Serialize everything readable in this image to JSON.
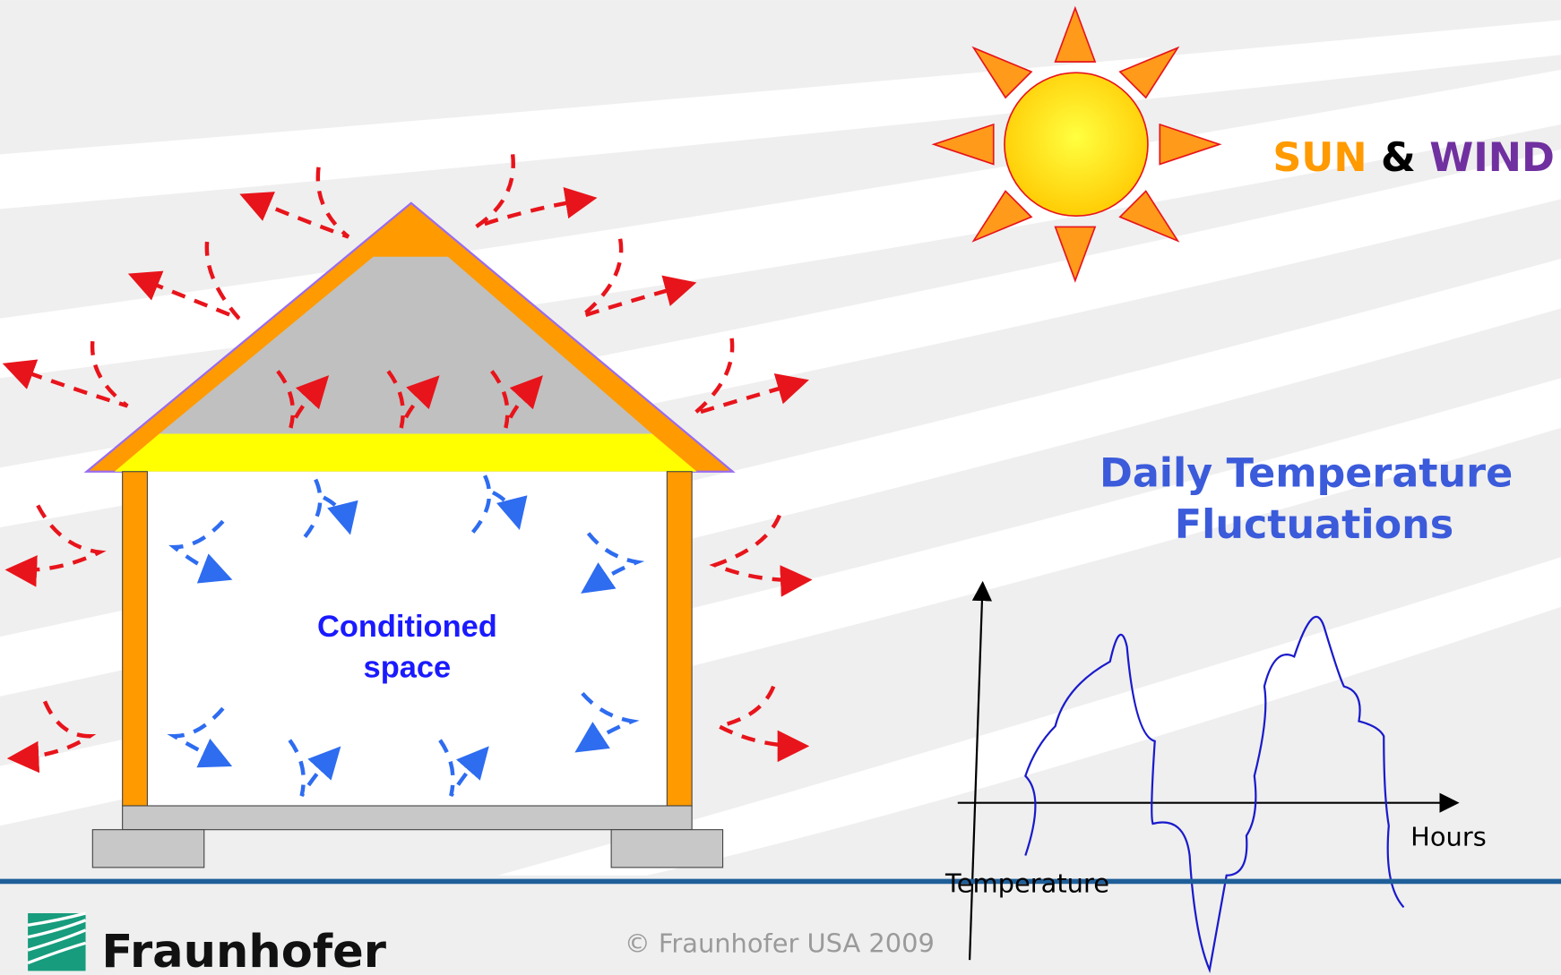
{
  "heading": {
    "sun": "SUN",
    "and": "&",
    "wind": "WIND"
  },
  "graph": {
    "title_line1": "Daily Temperature",
    "title_line2": "Fluctuations",
    "x_axis": "Hours",
    "y_axis": "Temperature"
  },
  "house": {
    "label_line1": "Conditioned",
    "label_line2": "space"
  },
  "footer": {
    "logo": "Fraunhofer",
    "copyright": "© Fraunhofer USA 2009"
  }
}
